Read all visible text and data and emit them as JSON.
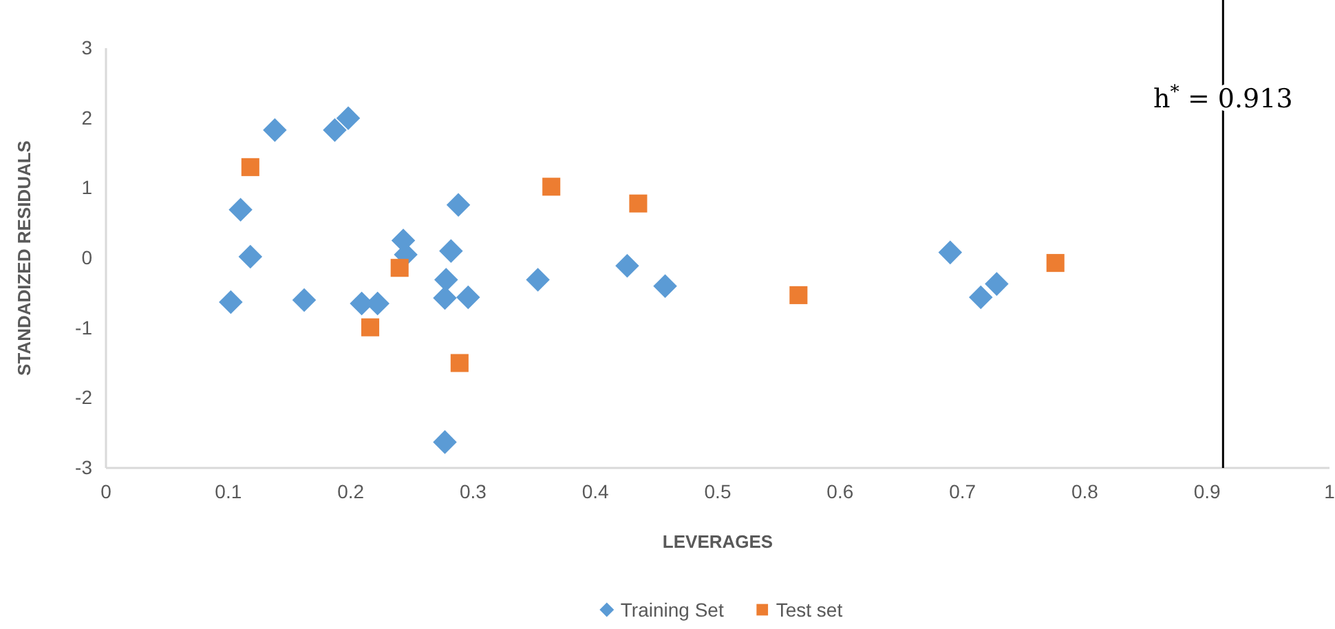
{
  "chart_data": {
    "type": "scatter",
    "xlabel": "LEVERAGES",
    "ylabel": "STANDADIZED RESIDUALS",
    "xlim": [
      0,
      1
    ],
    "xticks": [
      0,
      0.1,
      0.2,
      0.3,
      0.4,
      0.5,
      0.6,
      0.7,
      0.8,
      0.9,
      1
    ],
    "ylim": [
      -3,
      3
    ],
    "yticks": [
      -3,
      -2,
      -1,
      0,
      1,
      2,
      3
    ],
    "grid": false,
    "legend": "bottom",
    "ref_lines": [
      {
        "axis": "x",
        "value": 0.913,
        "label": "h$^{*}$ = 0.913",
        "color": "#000000"
      }
    ],
    "series": [
      {
        "name": "Training Set",
        "color": "#5b9bd5",
        "marker": "diamond",
        "x": [
          0.102,
          0.11,
          0.118,
          0.138,
          0.162,
          0.187,
          0.198,
          0.209,
          0.222,
          0.243,
          0.245,
          0.278,
          0.277,
          0.282,
          0.288,
          0.296,
          0.353,
          0.426,
          0.457,
          0.69,
          0.715,
          0.728,
          0.277
        ],
        "values": [
          -0.63,
          0.69,
          0.02,
          1.83,
          -0.6,
          1.83,
          2.0,
          -0.65,
          -0.65,
          0.25,
          0.05,
          -0.31,
          -0.57,
          0.1,
          0.76,
          -0.56,
          -0.31,
          -0.11,
          -0.4,
          0.08,
          -0.56,
          -0.37,
          -2.63
        ]
      },
      {
        "name": "Test set",
        "color": "#ed7d31",
        "marker": "square",
        "x": [
          0.118,
          0.216,
          0.24,
          0.289,
          0.364,
          0.435,
          0.566,
          0.776
        ],
        "values": [
          1.3,
          -0.99,
          -0.14,
          -1.5,
          1.02,
          0.78,
          -0.53,
          -0.07
        ]
      }
    ]
  }
}
